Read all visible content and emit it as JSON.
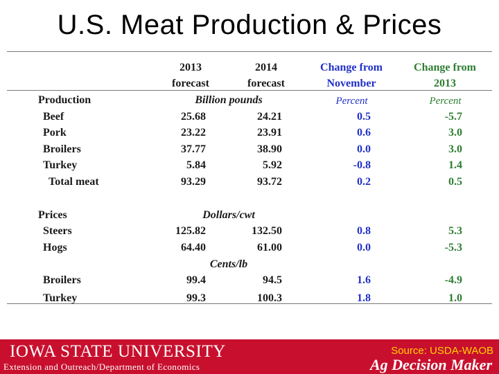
{
  "title": "U.S. Meat Production & Prices",
  "headers": {
    "col1": [
      "2013",
      "forecast"
    ],
    "col2": [
      "2014",
      "forecast"
    ],
    "col3": [
      "Change from",
      "November"
    ],
    "col4": [
      "Change from",
      "2013"
    ]
  },
  "production": {
    "label": "Production",
    "unit": "Billion pounds",
    "pct3": "Percent",
    "pct4": "Percent",
    "rows": [
      {
        "name": "Beef",
        "v2013": "25.68",
        "v2014": "24.21",
        "chgNov": "0.5",
        "chg2013": "-5.7"
      },
      {
        "name": "Pork",
        "v2013": "23.22",
        "v2014": "23.91",
        "chgNov": "0.6",
        "chg2013": "3.0"
      },
      {
        "name": "Broilers",
        "v2013": "37.77",
        "v2014": "38.90",
        "chgNov": "0.0",
        "chg2013": "3.0"
      },
      {
        "name": "Turkey",
        "v2013": "5.84",
        "v2014": "5.92",
        "chgNov": "-0.8",
        "chg2013": "1.4"
      },
      {
        "name": "Total meat",
        "v2013": "93.29",
        "v2014": "93.72",
        "chgNov": "0.2",
        "chg2013": "0.5"
      }
    ]
  },
  "prices": {
    "label": "Prices",
    "unit1": "Dollars/cwt",
    "unit2": "Cents/lb",
    "rows": [
      {
        "name": "Steers",
        "v2013": "125.82",
        "v2014": "132.50",
        "chgNov": "0.8",
        "chg2013": "5.3"
      },
      {
        "name": "Hogs",
        "v2013": "64.40",
        "v2014": "61.00",
        "chgNov": "0.0",
        "chg2013": "-5.3"
      },
      {
        "name": "Broilers",
        "v2013": "99.4",
        "v2014": "94.5",
        "chgNov": "1.6",
        "chg2013": "-4.9"
      },
      {
        "name": "Turkey",
        "v2013": "99.3",
        "v2014": "100.3",
        "chgNov": "1.8",
        "chg2013": "1.0"
      }
    ]
  },
  "footer": {
    "university": "IOWA STATE UNIVERSITY",
    "extension": "Extension and Outreach/Department of Economics",
    "source": "Source: USDA-WAOB",
    "brand": "Ag Decision Maker"
  }
}
